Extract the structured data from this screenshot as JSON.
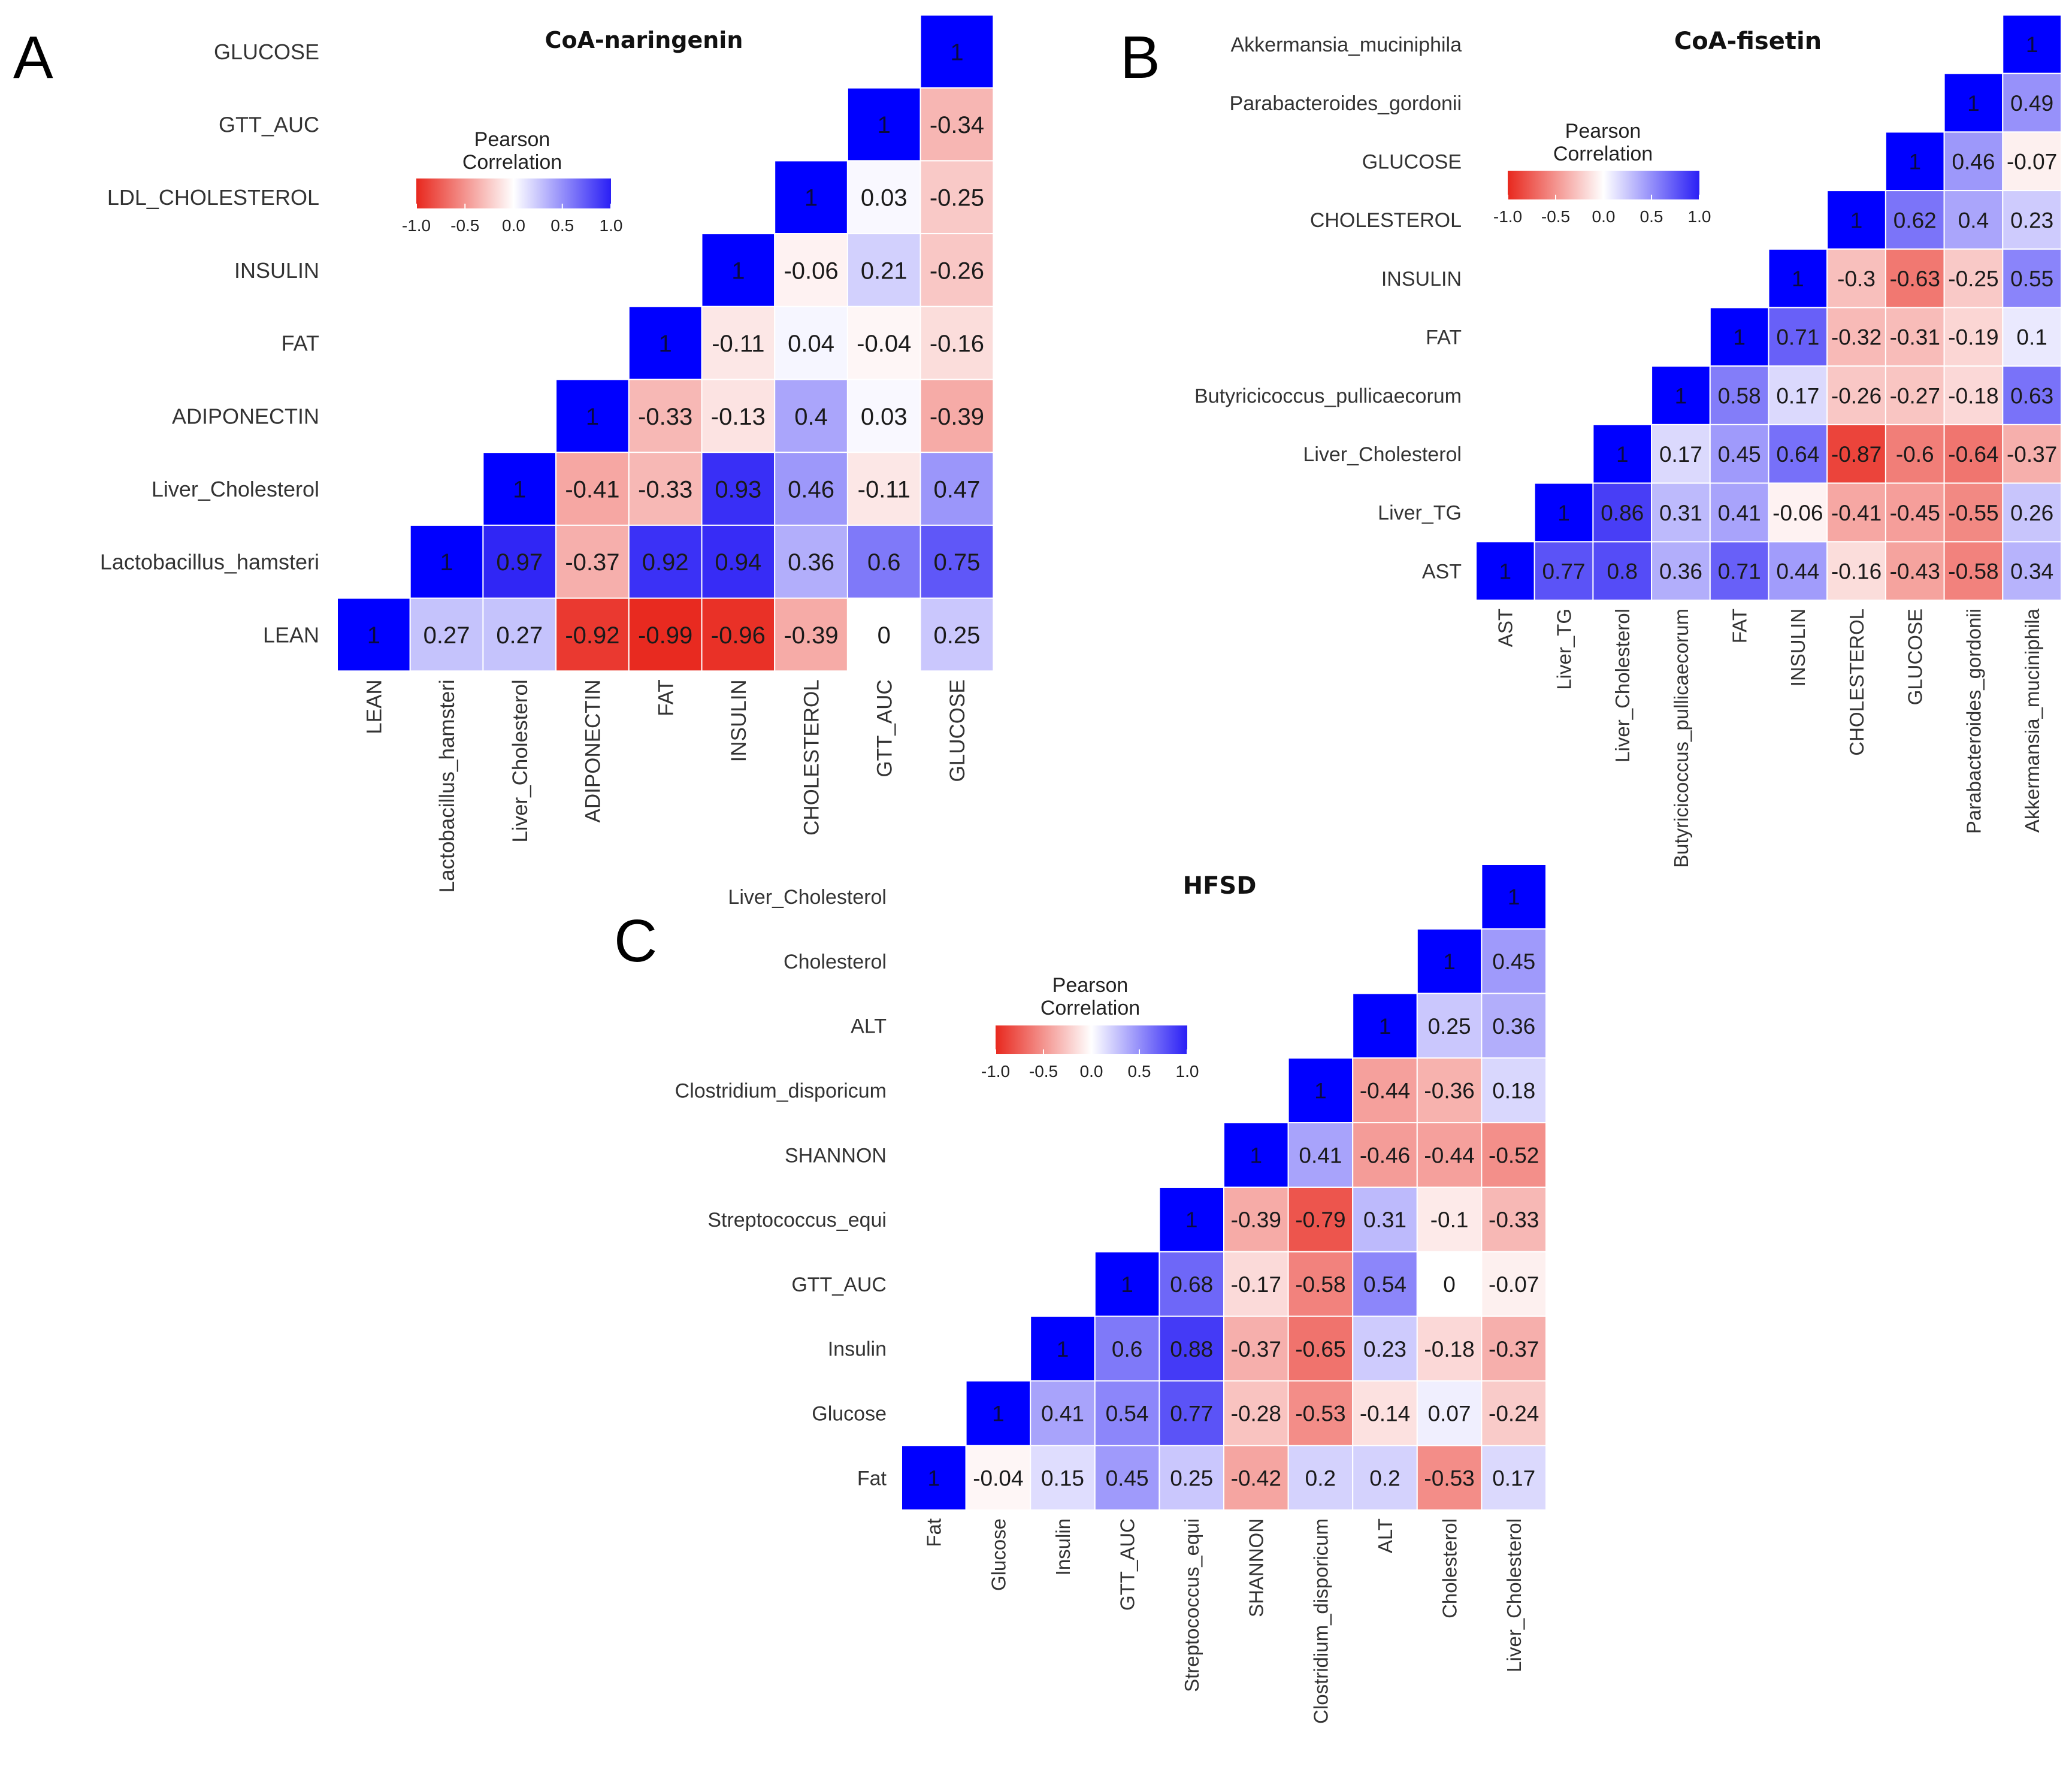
{
  "colors": {
    "negative": "#e8281e",
    "neutral": "#ffffff",
    "positive": "#2a1ff5",
    "diagonal": "#0000ff",
    "text": "#1a1a1a",
    "label": "#333333"
  },
  "chart_data": [
    {
      "panel": "A",
      "type": "heatmap",
      "title": "CoA-naringenin",
      "legend_title": [
        "Pearson",
        "Correlation"
      ],
      "legend_ticks": [
        "-1.0",
        "-0.5",
        "0.0",
        "0.5",
        "1.0"
      ],
      "scale_range": [
        -1,
        1
      ],
      "row_labels": [
        "GLUCOSE",
        "GTT_AUC",
        "LDL_CHOLESTEROL",
        "INSULIN",
        "FAT",
        "ADIPONECTIN",
        "Liver_Cholesterol",
        "Lactobacillus_hamsteri",
        "LEAN"
      ],
      "col_labels": [
        "LEAN",
        "Lactobacillus_hamsteri",
        "Liver_Cholesterol",
        "ADIPONECTIN",
        "FAT",
        "INSULIN",
        "CHOLESTEROL",
        "GTT_AUC",
        "GLUCOSE"
      ],
      "bottom_row": [
        "1",
        "0.27",
        "0.27",
        "-0.92",
        "-0.99",
        "-0.96",
        "-0.39",
        "0",
        "0.25"
      ],
      "columns": [
        [
          "1"
        ],
        [
          "1",
          "0.97"
        ],
        [
          "1",
          "-0.41",
          "-0.37"
        ],
        [
          "1",
          "-0.33",
          "-0.33",
          "0.92"
        ],
        [
          "1",
          "-0.11",
          "-0.13",
          "0.93",
          "0.94"
        ],
        [
          "1",
          "-0.06",
          "0.04",
          "0.4",
          "0.46",
          "0.36"
        ],
        [
          "1",
          "0.03",
          "0.21",
          "-0.04",
          "0.03",
          "-0.11",
          "0.6"
        ],
        [
          "1",
          "-0.34",
          "-0.25",
          "-0.26",
          "-0.16",
          "-0.39",
          "0.47",
          "0.75"
        ]
      ]
    },
    {
      "panel": "B",
      "type": "heatmap",
      "title": "CoA-fisetin",
      "legend_title": [
        "Pearson",
        "Correlation"
      ],
      "legend_ticks": [
        "-1.0",
        "-0.5",
        "0.0",
        "0.5",
        "1.0"
      ],
      "scale_range": [
        -1,
        1
      ],
      "row_labels": [
        "Akkermansia_muciniphila",
        "Parabacteroides_gordonii",
        "GLUCOSE",
        "CHOLESTEROL",
        "INSULIN",
        "FAT",
        "Butyricicoccus_pullicaecorum",
        "Liver_Cholesterol",
        "Liver_TG",
        "AST"
      ],
      "col_labels": [
        "AST",
        "Liver_TG",
        "Liver_Cholesterol",
        "Butyricicoccus_pullicaecorum",
        "FAT",
        "INSULIN",
        "CHOLESTEROL",
        "GLUCOSE",
        "Parabacteroides_gordonii",
        "Akkermansia_muciniphila"
      ],
      "bottom_row": [
        "1",
        "0.77",
        "0.8",
        "0.36",
        "0.71",
        "0.44",
        "-0.16",
        "-0.43",
        "-0.58",
        "0.34"
      ],
      "columns": [
        [
          "1"
        ],
        [
          "1",
          "0.86"
        ],
        [
          "1",
          "0.17",
          "0.31"
        ],
        [
          "1",
          "0.58",
          "0.45",
          "0.41"
        ],
        [
          "1",
          "0.71",
          "0.17",
          "0.64",
          "-0.06"
        ],
        [
          "1",
          "-0.3",
          "-0.32",
          "-0.26",
          "-0.87",
          "-0.41"
        ],
        [
          "1",
          "0.62",
          "-0.63",
          "-0.31",
          "-0.27",
          "-0.6",
          "-0.45"
        ],
        [
          "1",
          "0.46",
          "0.4",
          "-0.25",
          "-0.19",
          "-0.18",
          "-0.64",
          "-0.55"
        ],
        [
          "1",
          "0.49",
          "-0.07",
          "0.23",
          "0.55",
          "0.1",
          "0.63",
          "-0.37",
          "0.26"
        ]
      ]
    },
    {
      "panel": "C",
      "type": "heatmap",
      "title": "HFSD",
      "legend_title": [
        "Pearson",
        "Correlation"
      ],
      "legend_ticks": [
        "-1.0",
        "-0.5",
        "0.0",
        "0.5",
        "1.0"
      ],
      "scale_range": [
        -1,
        1
      ],
      "row_labels": [
        "Liver_Cholesterol",
        "Cholesterol",
        "ALT",
        "Clostridium_disporicum",
        "SHANNON",
        "Streptococcus_equi",
        "GTT_AUC",
        "Insulin",
        "Glucose",
        "Fat"
      ],
      "col_labels": [
        "Fat",
        "Glucose",
        "Insulin",
        "GTT_AUC",
        "Streptococcus_equi",
        "SHANNON",
        "Clostridium_disporicum",
        "ALT",
        "Cholesterol",
        "Liver_Cholesterol"
      ],
      "bottom_row": [
        "1",
        "-0.04",
        "0.15",
        "0.45",
        "0.25",
        "-0.42",
        "0.2",
        "0.2",
        "-0.53",
        "0.17"
      ],
      "columns": [
        [
          "1"
        ],
        [
          "1",
          "0.41"
        ],
        [
          "1",
          "0.6",
          "0.54"
        ],
        [
          "1",
          "0.68",
          "0.88",
          "0.77"
        ],
        [
          "1",
          "-0.39",
          "-0.17",
          "-0.37",
          "-0.28"
        ],
        [
          "1",
          "0.41",
          "-0.79",
          "-0.58",
          "-0.65",
          "-0.53"
        ],
        [
          "1",
          "-0.44",
          "-0.46",
          "0.31",
          "0.54",
          "0.23",
          "-0.14"
        ],
        [
          "1",
          "0.25",
          "-0.36",
          "-0.44",
          "-0.1",
          "0",
          "-0.18",
          "0.07"
        ],
        [
          "1",
          "0.45",
          "0.36",
          "0.18",
          "-0.52",
          "-0.33",
          "-0.07",
          "-0.37",
          "-0.24"
        ]
      ]
    }
  ],
  "panel_letters": [
    "A",
    "B",
    "C"
  ]
}
